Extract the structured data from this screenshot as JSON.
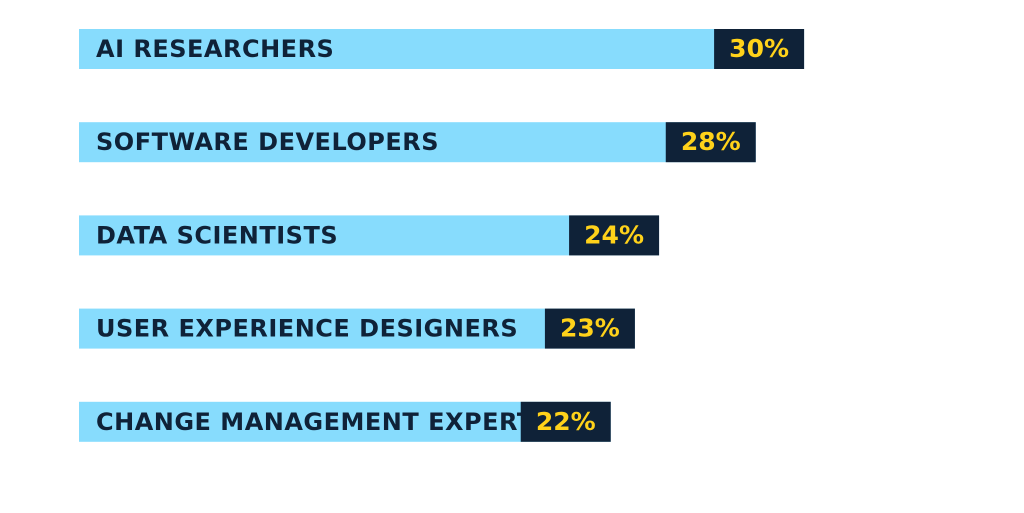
{
  "chart_data": {
    "type": "bar",
    "orientation": "horizontal",
    "categories": [
      "AI RESEARCHERS",
      "SOFTWARE DEVELOPERS",
      "DATA SCIENTISTS",
      "USER EXPERIENCE DESIGNERS",
      "CHANGE MANAGEMENT EXPERTS"
    ],
    "values": [
      30,
      28,
      24,
      23,
      22
    ],
    "value_labels": [
      "30%",
      "28%",
      "24%",
      "23%",
      "22%"
    ],
    "title": "",
    "xlabel": "",
    "ylabel": "",
    "grid": false,
    "legend": "none",
    "colors": {
      "bar": "#87dcfd",
      "label_box": "#0f2238",
      "label_text": "#ffd21a",
      "category_text": "#0f2238"
    }
  }
}
